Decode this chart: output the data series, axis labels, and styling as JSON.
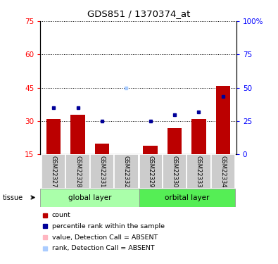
{
  "title": "GDS851 / 1370374_at",
  "samples": [
    "GSM22327",
    "GSM22328",
    "GSM22331",
    "GSM22332",
    "GSM22329",
    "GSM22330",
    "GSM22333",
    "GSM22334"
  ],
  "red_bar_values": [
    31,
    33,
    20,
    15,
    19,
    27,
    31,
    46
  ],
  "blue_dot_values": [
    36,
    36,
    30,
    45,
    30,
    33,
    34,
    41
  ],
  "absent_mask": [
    false,
    false,
    false,
    true,
    false,
    false,
    false,
    false
  ],
  "y_min": 15,
  "y_max": 75,
  "y_ticks_left": [
    15,
    30,
    45,
    60,
    75
  ],
  "y_ticks_right_labels": [
    "0",
    "25",
    "50",
    "75",
    "100%"
  ],
  "bar_color_present": "#BB0000",
  "bar_color_absent": "#FFB6C1",
  "dot_color_present": "#000099",
  "dot_color_absent": "#AACCFF",
  "global_group_color": "#AAFFAA",
  "orbital_group_color": "#55EE55",
  "label_bg_color": "#CCCCCC",
  "legend_items": [
    {
      "label": "count",
      "color": "#BB0000"
    },
    {
      "label": "percentile rank within the sa​mple",
      "color": "#000099"
    },
    {
      "label": "value, Detection Call = ABSENT",
      "color": "#FFB6C1"
    },
    {
      "label": "rank, Detection Call = ABSENT",
      "color": "#AACCFF"
    }
  ]
}
